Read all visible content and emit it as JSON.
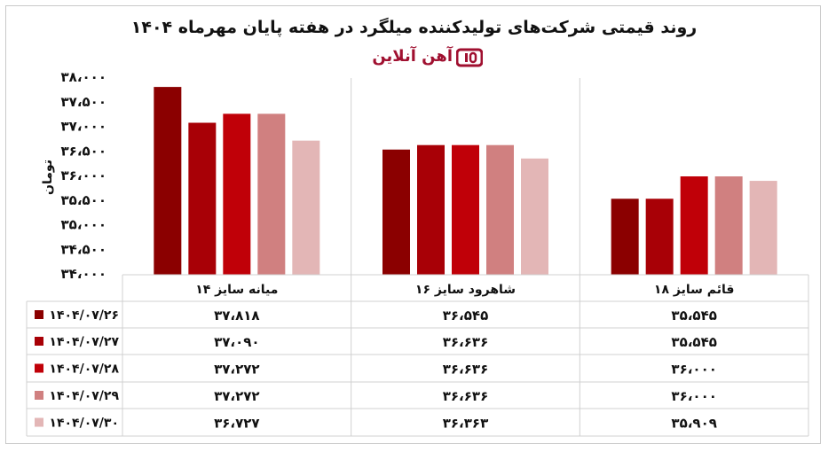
{
  "chart_data": {
    "type": "bar",
    "title": "روند قیمتی شرکت‌های تولیدکننده میلگرد در هفته پایان مهرماه ۱۴۰۴",
    "source_logo_text": "آهن آنلاین",
    "ylabel": "تومان",
    "ylim": [
      34000,
      38000
    ],
    "yticks": [
      34000,
      34500,
      35000,
      35500,
      36000,
      36500,
      37000,
      37500,
      38000
    ],
    "ytick_labels": [
      "۳۴،۰۰۰",
      "۳۴،۵۰۰",
      "۳۵،۰۰۰",
      "۳۵،۵۰۰",
      "۳۶،۰۰۰",
      "۳۶،۵۰۰",
      "۳۷،۰۰۰",
      "۳۷،۵۰۰",
      "۳۸،۰۰۰"
    ],
    "grid": true,
    "legend_placement": "table-left",
    "categories": [
      "میانه سایز ۱۴",
      "شاهرود سایز ۱۶",
      "قائم سایز ۱۸"
    ],
    "series": [
      {
        "name": "۱۴۰۴/۰۷/۲۶",
        "color": "#8b0000",
        "values": [
          37818,
          36545,
          35545
        ],
        "labels": [
          "۳۷،۸۱۸",
          "۳۶،۵۴۵",
          "۳۵،۵۴۵"
        ]
      },
      {
        "name": "۱۴۰۴/۰۷/۲۷",
        "color": "#a80006",
        "values": [
          37090,
          36636,
          35545
        ],
        "labels": [
          "۳۷،۰۹۰",
          "۳۶،۶۳۶",
          "۳۵،۵۴۵"
        ]
      },
      {
        "name": "۱۴۰۴/۰۷/۲۸",
        "color": "#c00008",
        "values": [
          37272,
          36636,
          36000
        ],
        "labels": [
          "۳۷،۲۷۲",
          "۳۶،۶۳۶",
          "۳۶،۰۰۰"
        ]
      },
      {
        "name": "۱۴۰۴/۰۷/۲۹",
        "color": "#d08080",
        "values": [
          37272,
          36636,
          36000
        ],
        "labels": [
          "۳۷،۲۷۲",
          "۳۶،۶۳۶",
          "۳۶،۰۰۰"
        ]
      },
      {
        "name": "۱۴۰۴/۰۷/۳۰",
        "color": "#e3b6b6",
        "values": [
          36727,
          36363,
          35909
        ],
        "labels": [
          "۳۶،۷۲۷",
          "۳۶،۳۶۳",
          "۳۵،۹۰۹"
        ]
      }
    ]
  }
}
